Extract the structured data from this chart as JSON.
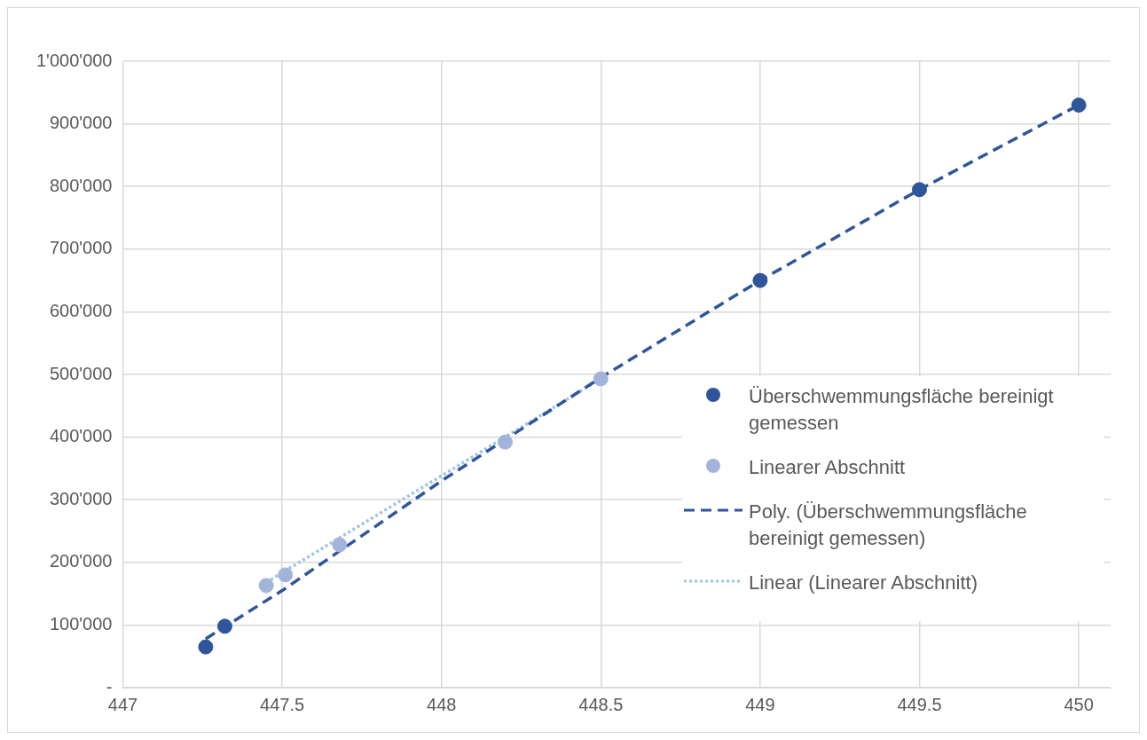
{
  "chart_data": {
    "type": "scatter",
    "xlim": [
      447,
      450.1
    ],
    "xticks": [
      447,
      447.5,
      448,
      448.5,
      449,
      449.5,
      450
    ],
    "ylim": [
      0,
      1000000
    ],
    "yticks": [
      {
        "value": 0,
        "label": "-"
      },
      {
        "value": 100000,
        "label": "100'000"
      },
      {
        "value": 200000,
        "label": "200'000"
      },
      {
        "value": 300000,
        "label": "300'000"
      },
      {
        "value": 400000,
        "label": "400'000"
      },
      {
        "value": 500000,
        "label": "500'000"
      },
      {
        "value": 600000,
        "label": "600'000"
      },
      {
        "value": 700000,
        "label": "700'000"
      },
      {
        "value": 800000,
        "label": "800'000"
      },
      {
        "value": 900000,
        "label": "900'000"
      },
      {
        "value": 1000000,
        "label": "1'000'000"
      }
    ],
    "grid": true,
    "legend": "right",
    "series": [
      {
        "name": "Überschwemmungsfläche bereinigt gemessen",
        "type": "scatter",
        "color": "#2f559a",
        "marker": "circle",
        "x": [
          447.26,
          447.32,
          449,
          449.5,
          450
        ],
        "values": [
          65000,
          98000,
          650000,
          795000,
          930000
        ]
      },
      {
        "name": "Linearer Abschnitt",
        "type": "scatter",
        "color": "#a3b4db",
        "marker": "circle",
        "x": [
          447.45,
          447.51,
          447.68,
          448.2,
          448.5
        ],
        "values": [
          163000,
          180000,
          228000,
          392000,
          493000
        ]
      },
      {
        "name": "Poly. (Überschwemmungsfläche bereinigt gemessen)",
        "type": "line",
        "color": "#2f559a",
        "line_style": "dashed",
        "marker": "none",
        "x": [
          447.26,
          447.5,
          448,
          448.5,
          449,
          449.5,
          450
        ],
        "values": [
          78000,
          155000,
          330000,
          495000,
          650000,
          795000,
          930000
        ]
      },
      {
        "name": "Linear (Linearer Abschnitt)",
        "type": "line",
        "color": "#9dc3e6",
        "line_style": "dotted",
        "marker": "none",
        "x": [
          447.45,
          448.5
        ],
        "values": [
          168000,
          493000
        ]
      }
    ]
  }
}
